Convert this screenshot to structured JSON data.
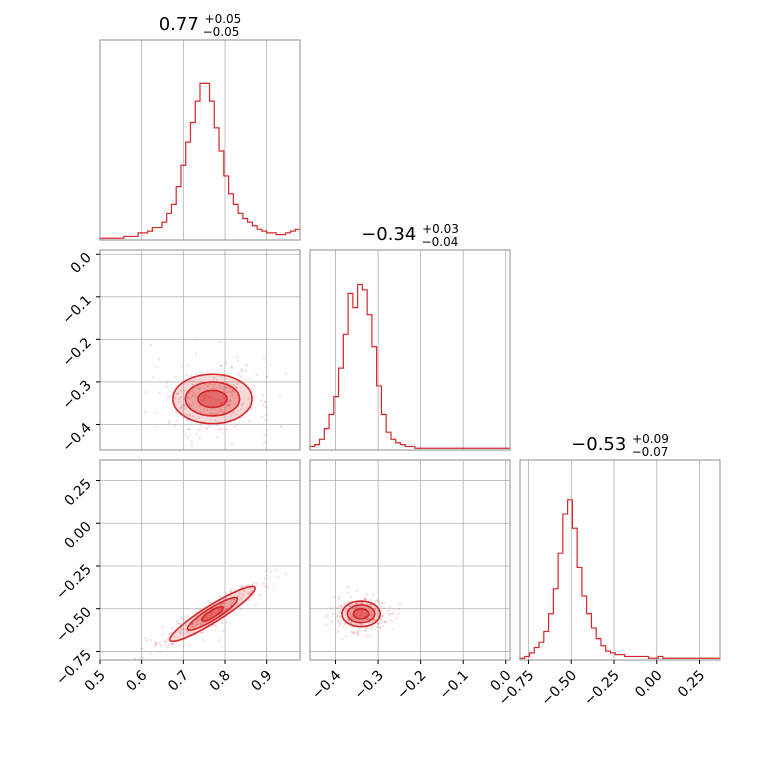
{
  "chart_data": {
    "type": "corner",
    "color": "#d62728",
    "parameters": [
      {
        "range": [
          0.5,
          0.98
        ],
        "ticks": [
          0.5,
          0.6,
          0.7,
          0.8,
          0.9
        ],
        "tick_labels": [
          "0.5",
          "0.6",
          "0.7",
          "0.8",
          "0.9"
        ],
        "title": {
          "median": "0.77",
          "plus": "+0.05",
          "minus": "−0.05"
        }
      },
      {
        "range": [
          -0.46,
          0.01
        ],
        "ticks": [
          -0.4,
          -0.3,
          -0.2,
          -0.1,
          0.0
        ],
        "tick_labels": [
          "−0.4",
          "−0.3",
          "−0.2",
          "−0.1",
          "0.0"
        ],
        "title": {
          "median": "−0.34",
          "plus": "+0.03",
          "minus": "−0.04"
        }
      },
      {
        "range": [
          -0.8,
          0.37
        ],
        "ticks": [
          -0.75,
          -0.5,
          -0.25,
          0.0,
          0.25
        ],
        "tick_labels": [
          "−0.75",
          "−0.50",
          "−0.25",
          "0.00",
          "0.25"
        ],
        "title": {
          "median": "−0.53",
          "plus": "+0.09",
          "minus": "−0.07"
        }
      }
    ],
    "histograms": [
      {
        "bins": [
          0.5,
          0.98
        ],
        "counts": [
          0.01,
          0.01,
          0.01,
          0.01,
          0.01,
          0.02,
          0.02,
          0.02,
          0.04,
          0.04,
          0.05,
          0.07,
          0.07,
          0.1,
          0.15,
          0.2,
          0.3,
          0.42,
          0.55,
          0.66,
          0.78,
          0.88,
          0.88,
          0.78,
          0.63,
          0.5,
          0.36,
          0.26,
          0.2,
          0.15,
          0.12,
          0.1,
          0.08,
          0.06,
          0.05,
          0.04,
          0.04,
          0.03,
          0.03,
          0.04,
          0.05,
          0.06
        ]
      },
      {
        "bins": [
          -0.46,
          0.01
        ],
        "counts": [
          0.02,
          0.03,
          0.06,
          0.12,
          0.2,
          0.3,
          0.46,
          0.65,
          0.88,
          0.8,
          0.93,
          0.9,
          0.76,
          0.58,
          0.36,
          0.2,
          0.1,
          0.06,
          0.04,
          0.03,
          0.02,
          0.02,
          0.01,
          0.01,
          0.01,
          0.01,
          0.01,
          0.01,
          0.01,
          0.01,
          0.01,
          0.01,
          0.01,
          0.01,
          0.01,
          0.01,
          0.01,
          0.01,
          0.01,
          0.01,
          0.01,
          0.01
        ]
      },
      {
        "bins": [
          -0.8,
          0.37
        ],
        "counts": [
          0.01,
          0.02,
          0.04,
          0.07,
          0.1,
          0.16,
          0.26,
          0.4,
          0.6,
          0.82,
          0.9,
          0.74,
          0.52,
          0.36,
          0.26,
          0.18,
          0.12,
          0.08,
          0.05,
          0.04,
          0.03,
          0.03,
          0.02,
          0.02,
          0.02,
          0.02,
          0.02,
          0.01,
          0.01,
          0.02,
          0.01,
          0.01,
          0.01,
          0.01,
          0.01,
          0.01,
          0.01,
          0.01,
          0.01,
          0.01,
          0.01,
          0.01
        ]
      }
    ],
    "contours": [
      {
        "panel": [
          1,
          0
        ],
        "center": [
          0.77,
          -0.34
        ],
        "radii": [
          [
            0.035,
            0.02
          ],
          [
            0.065,
            0.04
          ],
          [
            0.095,
            0.058
          ]
        ],
        "angle": 0
      },
      {
        "panel": [
          2,
          0
        ],
        "center": [
          0.77,
          -0.53
        ],
        "radii": [
          [
            0.03,
            0.02
          ],
          [
            0.07,
            0.035
          ],
          [
            0.12,
            0.05
          ]
        ],
        "angle": 32
      },
      {
        "panel": [
          2,
          1
        ],
        "center": [
          -0.34,
          -0.53
        ],
        "radii": [
          [
            0.018,
            0.03
          ],
          [
            0.032,
            0.052
          ],
          [
            0.045,
            0.075
          ]
        ],
        "angle": 0
      }
    ]
  }
}
